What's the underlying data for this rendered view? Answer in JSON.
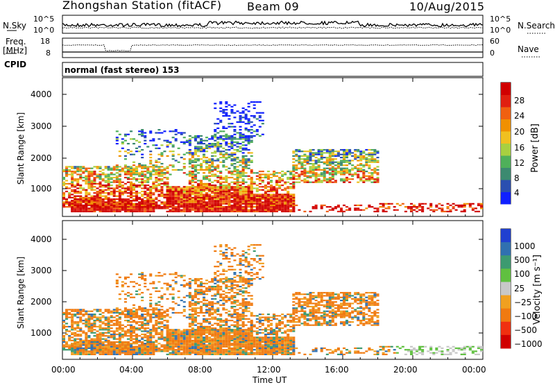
{
  "header": {
    "station": "Zhongshan Station (fitACF)",
    "beam": "Beam 09",
    "date": "10/Aug/2015"
  },
  "noise_panel": {
    "left_label": "N.Sky",
    "left_ticks": [
      "10^5",
      "10^0"
    ],
    "right_ticks": [
      "10^5",
      "10^0"
    ],
    "right_label": "N.Search"
  },
  "freq_panel": {
    "left_label_1": "Freq.",
    "left_label_2": "[MHz]",
    "left_ticks": [
      "18",
      "8"
    ],
    "right_ticks": [
      "60",
      "0"
    ],
    "right_label": "Nave"
  },
  "cpid_panel": {
    "left_label": "CPID",
    "mode_text": "normal (fast stereo) 153"
  },
  "colors": {
    "power_scale": [
      "#1020ff",
      "#2a4fb0",
      "#3c8a70",
      "#4fb05a",
      "#a8d040",
      "#f0c020",
      "#f09000",
      "#f06010",
      "#e02010",
      "#d00000"
    ],
    "velocity_scale": [
      "#d00000",
      "#f03010",
      "#f07a10",
      "#f0a020",
      "#c8c8c8",
      "#60c040",
      "#3c9a70",
      "#3070b0",
      "#2040d0"
    ]
  },
  "chart_data": [
    {
      "type": "heatmap",
      "title": "Power",
      "ylabel": "Slant Range [km]",
      "xlabel": "",
      "x_ticks": [
        "00:00",
        "04:00",
        "08:00",
        "12:00",
        "16:00",
        "20:00",
        "00:00"
      ],
      "y_ticks": [
        "1000",
        "2000",
        "3000",
        "4000"
      ],
      "ylim": [
        200,
        4500
      ],
      "colorbar_label": "Power [dB]",
      "colorbar_ticks": [
        "4",
        "8",
        "12",
        "16",
        "20",
        "24",
        "28"
      ],
      "value_range": [
        0,
        30
      ]
    },
    {
      "type": "heatmap",
      "title": "Velocity",
      "ylabel": "Slant Range [km]",
      "xlabel": "Time UT",
      "x_ticks": [
        "00:00",
        "04:00",
        "08:00",
        "12:00",
        "16:00",
        "20:00",
        "00:00"
      ],
      "y_ticks": [
        "1000",
        "2000",
        "3000",
        "4000"
      ],
      "ylim": [
        200,
        4500
      ],
      "colorbar_label": "Velocity [m s⁻¹]",
      "colorbar_ticks": [
        "1000",
        "500",
        "100",
        "25",
        "−25",
        "−100",
        "−500",
        "−1000"
      ],
      "value_range": [
        -1000,
        1000
      ]
    }
  ]
}
